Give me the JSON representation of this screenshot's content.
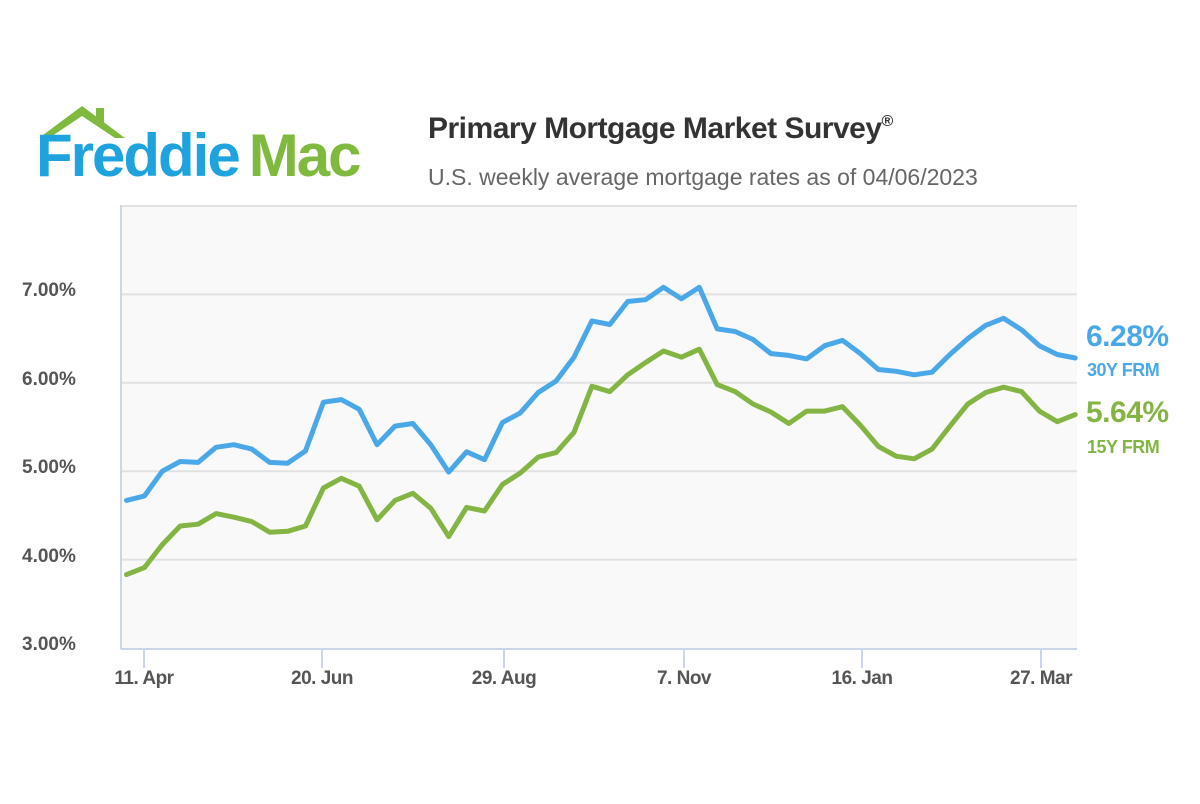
{
  "header": {
    "logo": {
      "word1": "Freddie",
      "word2": "Mac",
      "roof_icon": "house-roof-icon"
    },
    "title": "Primary Mortgage Market Survey",
    "title_mark": "®",
    "subtitle": "U.S. weekly average mortgage rates as of 04/06/2023"
  },
  "colors": {
    "series_30y": "#4aa8e8",
    "series_15y": "#84b443",
    "logo_blue": "#1fa3df",
    "logo_green": "#7fba3f",
    "grid": "#e1e1e1",
    "axis": "#ccd6eb",
    "plot_bg": "#f9f9f9"
  },
  "legend": [
    {
      "value": "6.28%",
      "label": "30Y FRM"
    },
    {
      "value": "5.64%",
      "label": "15Y FRM"
    }
  ],
  "chart_data": {
    "type": "line",
    "title": "Primary Mortgage Market Survey®",
    "subtitle": "U.S. weekly average mortgage rates as of 04/06/2023",
    "xlabel": "",
    "ylabel": "",
    "ylim": [
      3,
      8
    ],
    "yticks": [
      "3.00%",
      "4.00%",
      "5.00%",
      "6.00%",
      "7.00%"
    ],
    "xticks": [
      "11. Apr",
      "20. Jun",
      "29. Aug",
      "7. Nov",
      "16. Jan",
      "27. Mar"
    ],
    "grid": true,
    "legend_position": "right (end-of-line labels)",
    "x_start": "2022-03-31",
    "x_end": "2023-04-06",
    "x_step": "weekly",
    "series": [
      {
        "name": "30Y FRM",
        "last_value": 6.28,
        "values": [
          4.67,
          4.72,
          5.0,
          5.11,
          5.1,
          5.27,
          5.3,
          5.25,
          5.1,
          5.09,
          5.23,
          5.78,
          5.81,
          5.7,
          5.3,
          5.51,
          5.54,
          5.3,
          4.99,
          5.22,
          5.13,
          5.55,
          5.66,
          5.89,
          6.02,
          6.29,
          6.7,
          6.66,
          6.92,
          6.94,
          7.08,
          6.95,
          7.08,
          6.61,
          6.58,
          6.49,
          6.33,
          6.31,
          6.27,
          6.42,
          6.48,
          6.33,
          6.15,
          6.13,
          6.09,
          6.12,
          6.32,
          6.5,
          6.65,
          6.73,
          6.6,
          6.42,
          6.32,
          6.28
        ]
      },
      {
        "name": "15Y FRM",
        "last_value": 5.64,
        "values": [
          3.83,
          3.91,
          4.17,
          4.38,
          4.4,
          4.52,
          4.48,
          4.43,
          4.31,
          4.32,
          4.38,
          4.81,
          4.92,
          4.83,
          4.45,
          4.67,
          4.75,
          4.58,
          4.26,
          4.59,
          4.55,
          4.85,
          4.98,
          5.16,
          5.21,
          5.44,
          5.96,
          5.9,
          6.09,
          6.23,
          6.36,
          6.29,
          6.38,
          5.98,
          5.9,
          5.76,
          5.67,
          5.54,
          5.68,
          5.68,
          5.73,
          5.52,
          5.28,
          5.17,
          5.14,
          5.25,
          5.51,
          5.76,
          5.89,
          5.95,
          5.9,
          5.68,
          5.56,
          5.64
        ]
      }
    ]
  }
}
